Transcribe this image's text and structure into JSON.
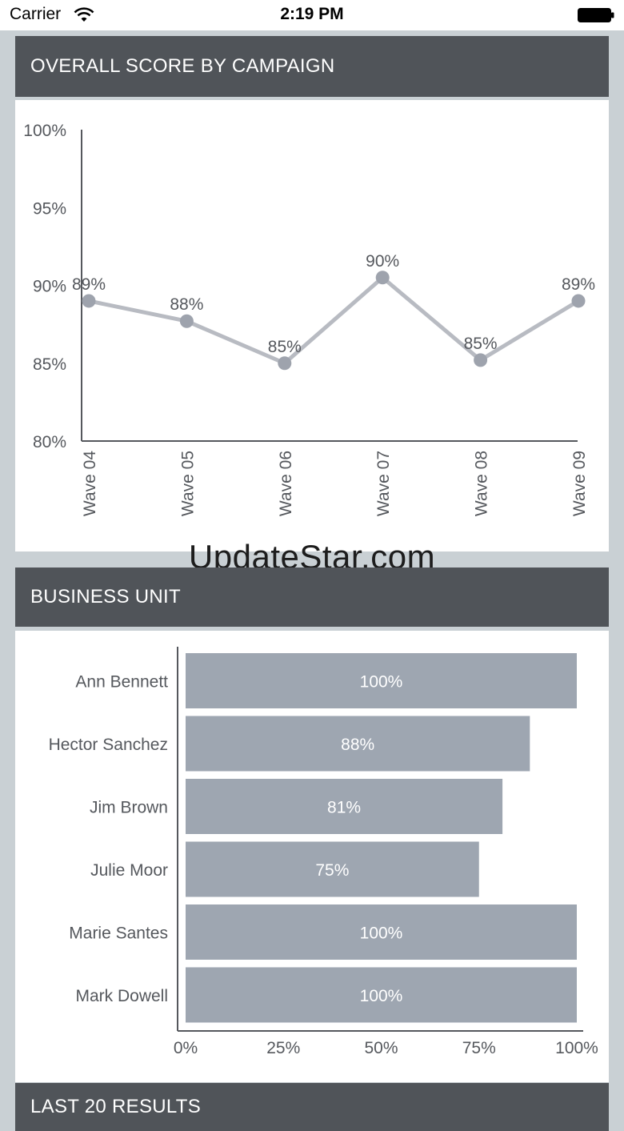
{
  "status_bar": {
    "carrier": "Carrier",
    "time": "2:19 PM"
  },
  "panels": {
    "overall": {
      "title": "OVERALL SCORE BY CAMPAIGN"
    },
    "business": {
      "title": "BUSINESS UNIT"
    },
    "last": {
      "title": "LAST 20 RESULTS"
    }
  },
  "watermark": "UpdateStar.com",
  "colors": {
    "header_bg": "#505459",
    "line": "#b8bbc2",
    "point": "#9ea3ad",
    "bar": "#9ea6b1",
    "page_bg": "#c9d0d4"
  },
  "chart_data": [
    {
      "type": "line",
      "title": "OVERALL SCORE BY CAMPAIGN",
      "categories": [
        "Wave 04",
        "Wave 05",
        "Wave 06",
        "Wave 07",
        "Wave 08",
        "Wave 09"
      ],
      "values": [
        89,
        87.7,
        85,
        90.5,
        85.2,
        89
      ],
      "data_labels": [
        "89%",
        "88%",
        "85%",
        "90%",
        "85%",
        "89%"
      ],
      "ylim": [
        80,
        100
      ],
      "yticks": [
        "80%",
        "85%",
        "90%",
        "95%",
        "100%"
      ],
      "ytick_values": [
        80,
        85,
        90,
        95,
        100
      ],
      "grid": false
    },
    {
      "type": "bar",
      "orientation": "horizontal",
      "title": "BUSINESS UNIT",
      "categories": [
        "Ann Bennett",
        "Hector Sanchez",
        "Jim Brown",
        "Julie Moor",
        "Marie Santes",
        "Mark Dowell"
      ],
      "values": [
        100,
        88,
        81,
        75,
        100,
        100
      ],
      "data_labels": [
        "100%",
        "88%",
        "81%",
        "75%",
        "100%",
        "100%"
      ],
      "xlim": [
        0,
        100
      ],
      "xticks": [
        "0%",
        "25%",
        "50%",
        "75%",
        "100%"
      ],
      "xtick_values": [
        0,
        25,
        50,
        75,
        100
      ],
      "grid": false
    }
  ]
}
